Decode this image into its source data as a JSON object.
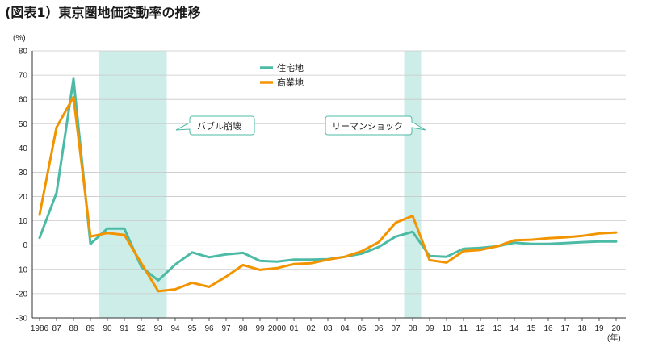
{
  "chart_data": {
    "type": "line",
    "title": "(図表1）東京圏地価変動率の推移",
    "ylabel": "(%)",
    "xlabel": "(年)",
    "ylim": [
      -30,
      80
    ],
    "yticks": [
      80,
      70,
      60,
      50,
      40,
      30,
      20,
      10,
      0,
      -10,
      -20,
      -30
    ],
    "categories": [
      "1986",
      "87",
      "88",
      "89",
      "90",
      "91",
      "92",
      "93",
      "94",
      "95",
      "96",
      "97",
      "98",
      "99",
      "2000",
      "01",
      "02",
      "03",
      "04",
      "05",
      "06",
      "07",
      "08",
      "09",
      "10",
      "11",
      "12",
      "13",
      "14",
      "15",
      "16",
      "17",
      "18",
      "19",
      "20"
    ],
    "series": [
      {
        "name": "住宅地",
        "color": "#4cbba6",
        "values": [
          3.0,
          21.5,
          68.5,
          0.5,
          6.8,
          6.8,
          -9.0,
          -14.5,
          -8.0,
          -3.0,
          -5.0,
          -3.8,
          -3.2,
          -6.5,
          -6.8,
          -6.0,
          -6.0,
          -5.8,
          -4.8,
          -3.5,
          -0.8,
          3.5,
          5.5,
          -4.5,
          -4.8,
          -1.5,
          -1.2,
          -0.5,
          1.0,
          0.5,
          0.5,
          0.8,
          1.2,
          1.5,
          1.5
        ]
      },
      {
        "name": "商業地",
        "color": "#f29400",
        "values": [
          12.5,
          48.5,
          61.0,
          3.5,
          5.0,
          4.2,
          -7.5,
          -19.0,
          -18.2,
          -15.5,
          -17.2,
          -13.0,
          -8.2,
          -10.2,
          -9.5,
          -7.8,
          -7.5,
          -6.0,
          -4.8,
          -2.5,
          1.2,
          9.2,
          12.0,
          -6.2,
          -7.2,
          -2.5,
          -2.0,
          -0.5,
          2.0,
          2.2,
          2.8,
          3.2,
          3.8,
          4.8,
          5.2
        ]
      }
    ],
    "shaded_periods": [
      {
        "start": "90",
        "end": "94",
        "label": "バブル崩壊"
      },
      {
        "start": "08",
        "end": "09",
        "label": "リーマンショック"
      }
    ],
    "grid": true,
    "legend_position": "top-center"
  }
}
